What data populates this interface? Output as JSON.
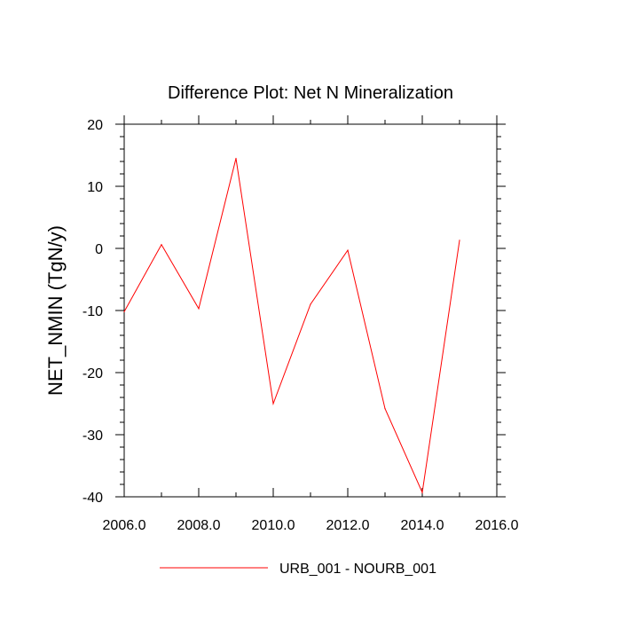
{
  "chart_data": {
    "type": "line",
    "title": "Difference Plot: Net N Mineralization",
    "xlabel": "",
    "ylabel": "NET_NMIN  (TgN/y)",
    "xlim": [
      2006,
      2016
    ],
    "ylim": [
      -40,
      20
    ],
    "x_ticks": [
      2006,
      2008,
      2010,
      2012,
      2014,
      2016
    ],
    "x_tick_labels": [
      "2006.0",
      "2008.0",
      "2010.0",
      "2012.0",
      "2014.0",
      "2016.0"
    ],
    "x_minor_step": 1,
    "y_ticks": [
      -40,
      -30,
      -20,
      -10,
      0,
      10,
      20
    ],
    "y_tick_labels": [
      "-40",
      "-30",
      "-20",
      "-10",
      "0",
      "10",
      "20"
    ],
    "y_minor_step": 2,
    "grid": false,
    "legend_position": "bottom-center",
    "series": [
      {
        "name": "URB_001 - NOURB_001",
        "color": "#ff0000",
        "x": [
          2006,
          2007,
          2008,
          2009,
          2010,
          2011,
          2012,
          2013,
          2014,
          2015
        ],
        "values": [
          -10.2,
          0.6,
          -9.7,
          14.5,
          -25.0,
          -9.0,
          -0.3,
          -25.8,
          -39.3,
          1.3
        ]
      }
    ]
  }
}
